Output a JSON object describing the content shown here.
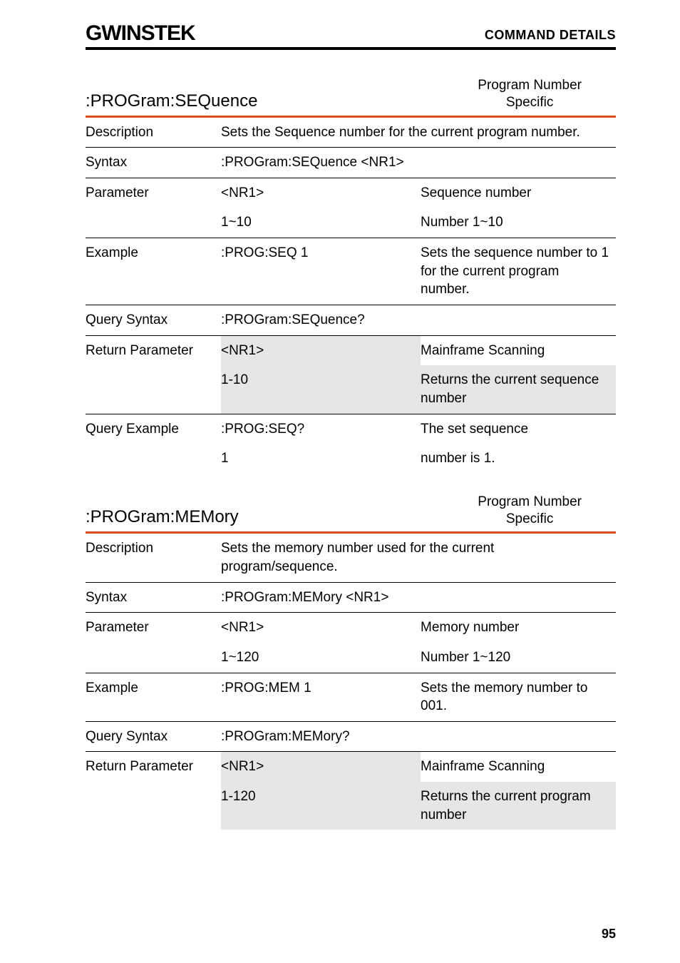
{
  "brand": "GWINSTEK",
  "header_right": "COMMAND DETAILS",
  "page_number": "95",
  "colors": {
    "accent": "#d94d1a",
    "shade": "#e6e6e6",
    "text": "#000000",
    "bg": "#ffffff"
  },
  "sections": [
    {
      "title": ":PROGram:SEQuence",
      "tag_line1": "Program Number",
      "tag_line2": "Specific",
      "rows": [
        {
          "border": false,
          "label": "Description",
          "mid_serif": "Sets the Sequence number for the current program number.",
          "span2": true
        },
        {
          "border": true,
          "label": "Syntax",
          "mid": ":PROGram:SEQuence <NR1>",
          "span2": true
        },
        {
          "border": true,
          "label": "Parameter",
          "mid": "<NR1>",
          "right": "Sequence number"
        },
        {
          "border": false,
          "label": "",
          "mid": "1~10",
          "right": "Number 1~10"
        },
        {
          "border": true,
          "label": "Example",
          "mid": ":PROG:SEQ 1",
          "right_serif": "Sets the sequence number to 1 for the current program number."
        },
        {
          "border": true,
          "label": "Query Syntax",
          "mid": ":PROGram:SEQuence?",
          "span2": true
        },
        {
          "border": true,
          "label": "Return Parameter",
          "mid": "<NR1>",
          "right": "Mainframe Scanning",
          "shade_mid": true
        },
        {
          "border": false,
          "label": "",
          "mid": "1-10",
          "right": "Returns the current sequence number",
          "shade_mid": true,
          "shade_right": true
        },
        {
          "border": true,
          "label": "Query Example",
          "mid": ":PROG:SEQ?",
          "right_serif": "The set sequence"
        },
        {
          "border": false,
          "label": "",
          "mid": "1",
          "right_serif": "number is 1."
        }
      ]
    },
    {
      "title": ":PROGram:MEMory",
      "tag_line1": "Program Number",
      "tag_line2": "Specific",
      "rows": [
        {
          "border": false,
          "label": "Description",
          "mid_serif": "Sets the memory number used for the current program/sequence.",
          "span2": true
        },
        {
          "border": true,
          "label": "Syntax",
          "mid": ":PROGram:MEMory <NR1>",
          "span2": true
        },
        {
          "border": true,
          "label": "Parameter",
          "mid": "<NR1>",
          "right": "Memory number"
        },
        {
          "border": false,
          "label": "",
          "mid": "1~120",
          "right": "Number 1~120"
        },
        {
          "border": true,
          "label": "Example",
          "mid": ":PROG:MEM 1",
          "right_serif": "Sets the memory number to 001."
        },
        {
          "border": true,
          "label": "Query Syntax",
          "mid": ":PROGram:MEMory?",
          "span2": true
        },
        {
          "border": true,
          "label": "Return Parameter",
          "mid": "<NR1>",
          "right": "Mainframe Scanning",
          "shade_mid": true
        },
        {
          "border": false,
          "label": "",
          "mid": "1-120",
          "right": "Returns the current program number",
          "shade_mid": true,
          "shade_right": true
        }
      ]
    }
  ]
}
